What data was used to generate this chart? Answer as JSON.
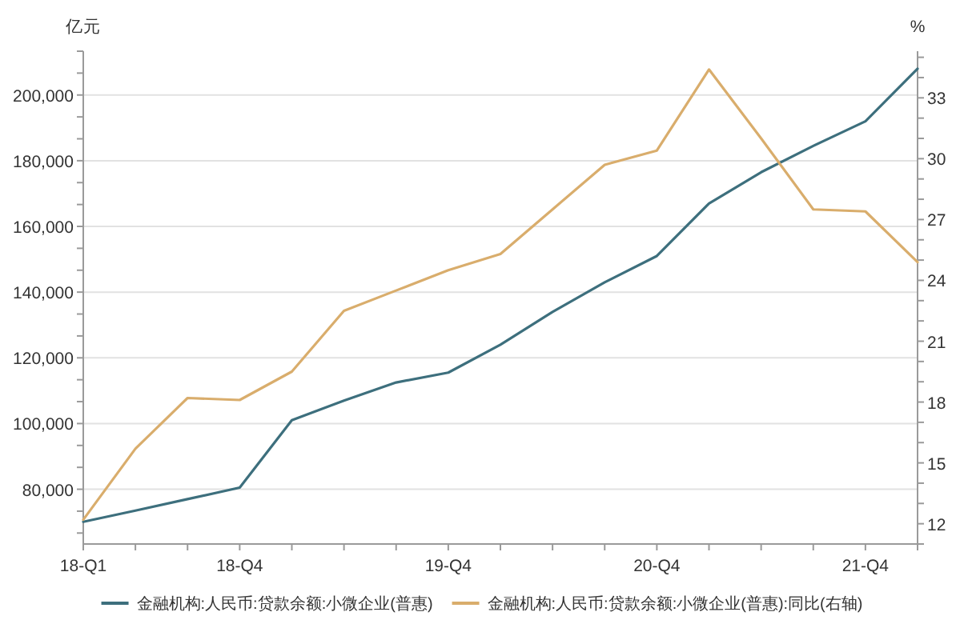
{
  "chart_data": {
    "type": "line",
    "ylabel": "亿元",
    "y2label": "%",
    "categories": [
      "18-Q1",
      null,
      null,
      "18-Q4",
      null,
      null,
      null,
      "19-Q4",
      null,
      null,
      null,
      "20-Q4",
      null,
      null,
      null,
      "21-Q4",
      null
    ],
    "series": [
      {
        "name": "金融机构:人民币:贷款余额:小微企业(普惠)",
        "color": "#3d6f7d",
        "values": [
          70100,
          73500,
          77000,
          80500,
          101000,
          107000,
          112500,
          115500,
          124000,
          134000,
          143000,
          151000,
          167000,
          176500,
          184500,
          192000,
          208000
        ]
      },
      {
        "name": "金融机构:人民币:贷款余额:小微企业(普惠):同比(右轴)",
        "color": "#d9ad6c",
        "axis": "y2",
        "values": [
          12.2,
          15.7,
          18.2,
          18.1,
          19.5,
          22.5,
          23.5,
          24.5,
          25.3,
          27.5,
          29.7,
          30.4,
          34.4,
          31.0,
          27.5,
          27.4,
          24.9
        ]
      }
    ],
    "ylim": [
      63333,
      213333
    ],
    "yticks": [
      {
        "value": 66667,
        "label": null
      },
      {
        "value": 73333,
        "label": null
      },
      {
        "value": 80000,
        "label": "80,000"
      },
      {
        "value": 86667,
        "label": null
      },
      {
        "value": 93333,
        "label": null
      },
      {
        "value": 100000,
        "label": "100,000"
      },
      {
        "value": 106667,
        "label": null
      },
      {
        "value": 113333,
        "label": null
      },
      {
        "value": 120000,
        "label": "120,000"
      },
      {
        "value": 126667,
        "label": null
      },
      {
        "value": 133333,
        "label": null
      },
      {
        "value": 140000,
        "label": "140,000"
      },
      {
        "value": 146667,
        "label": null
      },
      {
        "value": 153333,
        "label": null
      },
      {
        "value": 160000,
        "label": "160,000"
      },
      {
        "value": 166667,
        "label": null
      },
      {
        "value": 173333,
        "label": null
      },
      {
        "value": 180000,
        "label": "180,000"
      },
      {
        "value": 186667,
        "label": null
      },
      {
        "value": 193333,
        "label": null
      },
      {
        "value": 200000,
        "label": "200,000"
      },
      {
        "value": 206667,
        "label": null
      },
      {
        "value": 213333,
        "label": null
      }
    ],
    "y2lim": [
      11,
      35.3
    ],
    "y2ticks": [
      {
        "value": 11,
        "label": null
      },
      12,
      {
        "value": 13,
        "label": null
      },
      {
        "value": 14,
        "label": null
      },
      15,
      {
        "value": 16,
        "label": null
      },
      {
        "value": 17,
        "label": null
      },
      18,
      {
        "value": 19,
        "label": null
      },
      {
        "value": 20,
        "label": null
      },
      21,
      {
        "value": 22,
        "label": null
      },
      {
        "value": 23,
        "label": null
      },
      24,
      {
        "value": 25,
        "label": null
      },
      {
        "value": 26,
        "label": null
      },
      27,
      {
        "value": 28,
        "label": null
      },
      {
        "value": 29,
        "label": null
      },
      30,
      {
        "value": 31,
        "label": null
      },
      {
        "value": 32,
        "label": null
      },
      33,
      {
        "value": 34,
        "label": null
      },
      {
        "value": 35,
        "label": null
      }
    ],
    "grid": "y",
    "legend": "bottom"
  }
}
